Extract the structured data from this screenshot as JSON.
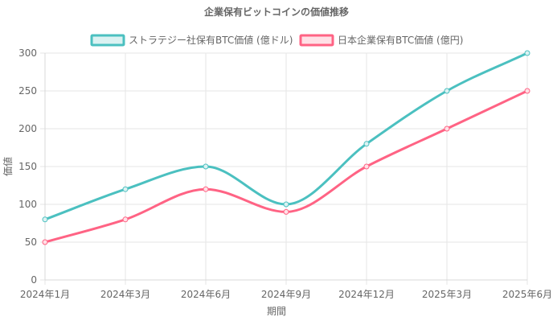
{
  "chart_data": {
    "type": "line",
    "title": "企業保有ビットコインの価値推移",
    "xlabel": "期間",
    "ylabel": "価値",
    "categories": [
      "2024年1月",
      "2024年3月",
      "2024年6月",
      "2024年9月",
      "2024年12月",
      "2025年3月",
      "2025年6月"
    ],
    "ylim": [
      0,
      300
    ],
    "yticks": [
      0,
      50,
      100,
      150,
      200,
      250,
      300
    ],
    "grid": true,
    "legend_position": "top",
    "series": [
      {
        "name": "ストラテジー社保有BTC価値 (億ドル)",
        "values": [
          80,
          120,
          150,
          100,
          180,
          250,
          300
        ],
        "color": "#4bc0c0",
        "fill": "#dbf2f2"
      },
      {
        "name": "日本企業保有BTC価値 (億円)",
        "values": [
          50,
          80,
          120,
          90,
          150,
          200,
          250
        ],
        "color": "#ff6384",
        "fill": "#ffe0e6"
      }
    ]
  }
}
